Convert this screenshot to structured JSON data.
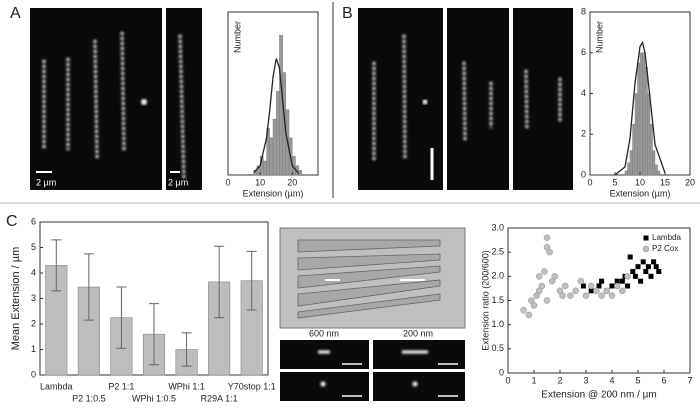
{
  "panel_labels": [
    "A",
    "B",
    "C"
  ],
  "annotations": {
    "scale_a1": "2 µm",
    "scale_a2": "2 µm",
    "channel_600": "600 nm",
    "channel_200": "200 nm"
  },
  "chart_data": [
    {
      "type": "histogram",
      "x_label": "Extension (µm)",
      "y_label": "Number",
      "bins": [
        8,
        9,
        10,
        11,
        12,
        13,
        14,
        15,
        16,
        17,
        18,
        19,
        20,
        21,
        22,
        23
      ],
      "values": [
        1,
        2,
        4,
        3,
        10,
        8,
        12,
        18,
        30,
        22,
        14,
        8,
        4,
        2,
        1
      ],
      "color": "#999999",
      "fit": {
        "x": [
          8,
          10,
          12,
          13,
          14,
          15,
          16,
          17,
          18,
          20,
          22
        ],
        "values": [
          0.5,
          2,
          8,
          14,
          21,
          25,
          23,
          16,
          9,
          2,
          0.3
        ],
        "color": "#222222"
      },
      "xlim": [
        0,
        28
      ],
      "xticks": [
        0,
        10,
        20
      ],
      "ylim": [
        0,
        35
      ]
    },
    {
      "type": "histogram",
      "x_label": "Extension (µm)",
      "y_label": "Number",
      "bins": [
        7,
        7.5,
        8,
        8.5,
        9,
        9.5,
        10,
        10.5,
        11,
        11.5,
        12,
        12.5,
        13,
        13.5,
        14
      ],
      "values": [
        0.2,
        0.6,
        1.2,
        2.5,
        4,
        5.5,
        6,
        6,
        5.3,
        4,
        2.5,
        1.2,
        0.5,
        0.2
      ],
      "color": "#999999",
      "fit": {
        "x": [
          5,
          7,
          8,
          9,
          10,
          10.5,
          11,
          12,
          13,
          15
        ],
        "values": [
          0,
          0.4,
          1.8,
          4.5,
          6.3,
          6.5,
          6,
          3.8,
          1.5,
          0.1
        ],
        "color": "#222222"
      },
      "xlim": [
        0,
        20
      ],
      "xticks": [
        0,
        5,
        10,
        15,
        20
      ],
      "ylim": [
        0,
        8
      ],
      "yticks": [
        0,
        2,
        4,
        6,
        8
      ]
    },
    {
      "type": "bar",
      "y_label": "Mean Extension / µm",
      "categories": [
        "Lambda",
        "P2 1:0.5",
        "P2 1:1",
        "WPhi 1:0.5",
        "WPhi 1:1",
        "R29A 1:1",
        "Y70stop 1:1"
      ],
      "values": [
        4.3,
        3.45,
        2.25,
        1.6,
        1.0,
        3.65,
        3.7
      ],
      "errors": [
        1.0,
        1.3,
        1.2,
        1.2,
        0.65,
        1.4,
        1.15
      ],
      "color": "#bdbdbd",
      "ylim": [
        0,
        6
      ],
      "yticks": [
        0,
        1,
        2,
        3,
        4,
        5,
        6
      ]
    },
    {
      "type": "scatter",
      "x_label": "Extension @ 200 nm / µm",
      "y_label": "Extension ratio (200/600)",
      "xlim": [
        0,
        7
      ],
      "xticks": [
        0,
        1,
        2,
        3,
        4,
        5,
        6,
        7
      ],
      "ylim": [
        0,
        3
      ],
      "yticks": [
        0,
        0.5,
        {
          "value": 1,
          "label": "1.0"
        },
        1.5,
        {
          "value": 2,
          "label": "2.0"
        },
        2.5,
        {
          "value": 3,
          "label": "3.0"
        }
      ],
      "legend": "upper right",
      "series": [
        {
          "name": "Lambda",
          "color": "#000000",
          "x": [
            2.9,
            3.2,
            3.6,
            3.8,
            4.0,
            4.2,
            4.4,
            4.5,
            4.6,
            4.8,
            4.9,
            5.0,
            5.1,
            5.2,
            5.3,
            5.4,
            5.5,
            5.6,
            5.7,
            4.7,
            5.8,
            3.5
          ],
          "values": [
            1.8,
            1.7,
            1.9,
            1.7,
            1.8,
            1.9,
            1.9,
            2.0,
            1.8,
            2.1,
            2.0,
            2.2,
            1.9,
            2.3,
            2.1,
            2.2,
            2.0,
            2.3,
            2.2,
            2.4,
            2.1,
            1.8
          ]
        },
        {
          "name": "P2 Cox",
          "color": "#c0c0c0",
          "x": [
            0.6,
            0.8,
            0.9,
            1.0,
            1.1,
            1.2,
            1.3,
            1.4,
            1.5,
            1.5,
            1.6,
            1.7,
            1.8,
            2.0,
            2.2,
            2.4,
            2.6,
            2.8,
            3.0,
            3.2,
            3.4,
            3.6,
            3.8,
            4.0,
            4.2,
            4.4,
            4.6,
            1.5,
            1.2,
            2.1
          ],
          "values": [
            1.3,
            1.2,
            1.5,
            1.4,
            1.6,
            1.7,
            1.8,
            2.1,
            2.8,
            1.5,
            2.5,
            1.9,
            2.0,
            1.7,
            1.8,
            1.6,
            1.7,
            1.9,
            1.6,
            1.8,
            1.7,
            1.6,
            1.7,
            1.6,
            1.8,
            1.7,
            2.0,
            2.6,
            2.0,
            1.6
          ]
        }
      ]
    }
  ]
}
